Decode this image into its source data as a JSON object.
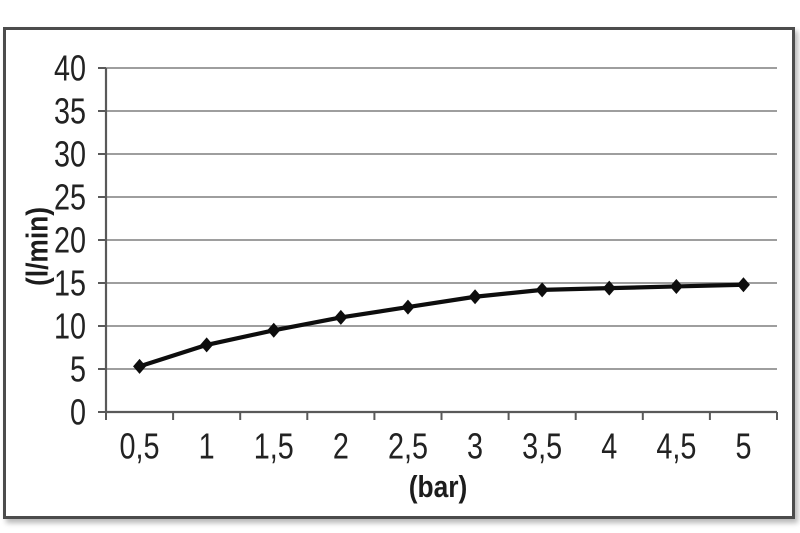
{
  "chart_data": {
    "type": "line",
    "categories": [
      "0,5",
      "1",
      "1,5",
      "2",
      "2,5",
      "3",
      "3,5",
      "4",
      "4,5",
      "5"
    ],
    "x_numeric": [
      0.5,
      1,
      1.5,
      2,
      2.5,
      3,
      3.5,
      4,
      4.5,
      5
    ],
    "values": [
      5.3,
      7.8,
      9.5,
      11.0,
      12.2,
      13.4,
      14.2,
      14.4,
      14.6,
      14.8
    ],
    "title": "",
    "xlabel": "(bar)",
    "ylabel": "(l/min)",
    "ylim": [
      0,
      40
    ],
    "yticks": [
      0,
      5,
      10,
      15,
      20,
      25,
      30,
      35,
      40
    ],
    "ytick_labels": [
      "0",
      "5",
      "10",
      "15",
      "20",
      "25",
      "30",
      "35",
      "40"
    ],
    "grid": "horizontal",
    "legend": "none",
    "marker": "diamond",
    "colors": {
      "line": "#0d0d0d",
      "marker": "#0d0d0d",
      "grid": "#7f7f7f",
      "axis": "#595959",
      "text": "#222222",
      "frame_border": "#4c4c4c",
      "background": "#ffffff"
    }
  }
}
